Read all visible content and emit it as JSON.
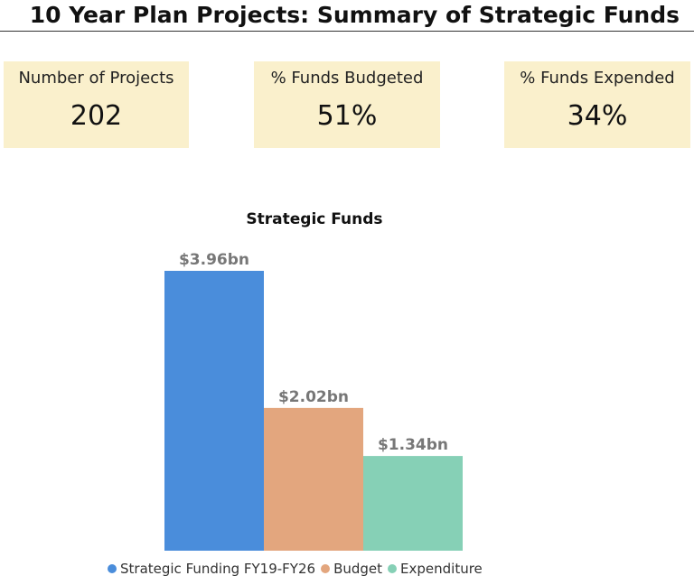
{
  "header": {
    "title": "10 Year Plan Projects: Summary of Strategic Funds"
  },
  "kpis": [
    {
      "label": "Number of Projects",
      "value": "202"
    },
    {
      "label": "% Funds Budgeted",
      "value": "51%"
    },
    {
      "label": "% Funds Expended",
      "value": "34%"
    }
  ],
  "chart_data": {
    "type": "bar",
    "title": "Strategic Funds",
    "categories": [
      "Strategic Funding FY19-FY26",
      "Budget",
      "Expenditure"
    ],
    "values": [
      3.96,
      2.02,
      1.34
    ],
    "data_labels": [
      "$3.96bn",
      "$2.02bn",
      "$1.34bn"
    ],
    "unit": "bn",
    "colors": [
      "#4a8ddb",
      "#e3a67e",
      "#86d0b6"
    ],
    "ylim": [
      0,
      3.96
    ],
    "grid": false,
    "legend_position": "bottom"
  }
}
